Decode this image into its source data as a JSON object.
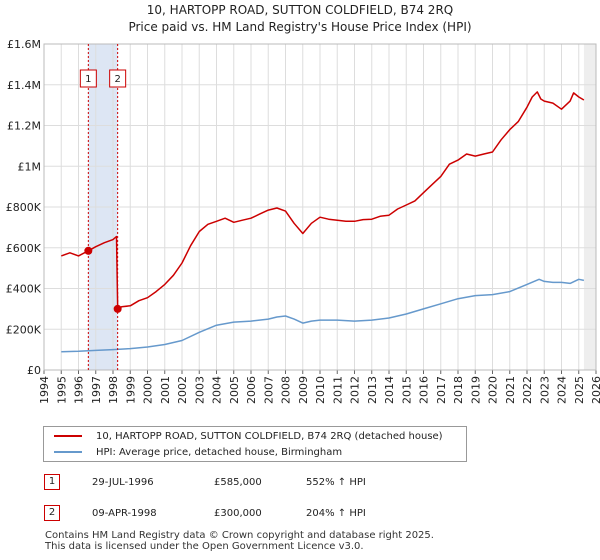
{
  "title": {
    "line1": "10, HARTOPP ROAD, SUTTON COLDFIELD, B74 2RQ",
    "line2": "Price paid vs. HM Land Registry's House Price Index (HPI)"
  },
  "colors": {
    "property": "#cc0000",
    "hpi": "#6699cc",
    "grid": "#dddddd",
    "marker_line": "#cc0000",
    "band": "#dde6f4"
  },
  "chart_data": {
    "type": "line",
    "xlim": [
      1994,
      2026
    ],
    "ylim": [
      0,
      1600000
    ],
    "yticks": [
      {
        "value": 0,
        "label": "£0"
      },
      {
        "value": 200000,
        "label": "£200K"
      },
      {
        "value": 400000,
        "label": "£400K"
      },
      {
        "value": 600000,
        "label": "£600K"
      },
      {
        "value": 800000,
        "label": "£800K"
      },
      {
        "value": 1000000,
        "label": "£1M"
      },
      {
        "value": 1200000,
        "label": "£1.2M"
      },
      {
        "value": 1400000,
        "label": "£1.4M"
      },
      {
        "value": 1600000,
        "label": "£1.6M"
      }
    ],
    "xticks": [
      "1994",
      "1995",
      "1996",
      "1997",
      "1998",
      "1999",
      "2000",
      "2001",
      "2002",
      "2003",
      "2004",
      "2005",
      "2006",
      "2007",
      "2008",
      "2009",
      "2010",
      "2011",
      "2012",
      "2013",
      "2014",
      "2015",
      "2016",
      "2017",
      "2018",
      "2019",
      "2020",
      "2021",
      "2022",
      "2023",
      "2024",
      "2025",
      "2026"
    ],
    "series": [
      {
        "name": "10, HARTOPP ROAD, SUTTON COLDFIELD, B74 2RQ (detached house)",
        "x": [
          1995.0,
          1995.5,
          1996.0,
          1996.57,
          1997.0,
          1997.5,
          1998.0,
          1998.2,
          1998.27,
          1998.5,
          1999.0,
          1999.5,
          2000.0,
          2000.5,
          2001.0,
          2001.5,
          2002.0,
          2002.5,
          2003.0,
          2003.5,
          2004.0,
          2004.5,
          2005.0,
          2005.5,
          2006.0,
          2006.5,
          2007.0,
          2007.5,
          2008.0,
          2008.5,
          2009.0,
          2009.5,
          2010.0,
          2010.5,
          2011.0,
          2011.5,
          2012.0,
          2012.5,
          2013.0,
          2013.5,
          2014.0,
          2014.5,
          2015.0,
          2015.5,
          2016.0,
          2016.5,
          2017.0,
          2017.5,
          2018.0,
          2018.5,
          2019.0,
          2019.5,
          2020.0,
          2020.5,
          2021.0,
          2021.5,
          2022.0,
          2022.3,
          2022.6,
          2022.8,
          2023.0,
          2023.5,
          2024.0,
          2024.5,
          2024.7,
          2025.0,
          2025.3
        ],
        "values": [
          560000,
          575000,
          560000,
          585000,
          605000,
          625000,
          640000,
          655000,
          300000,
          310000,
          315000,
          340000,
          355000,
          385000,
          420000,
          465000,
          525000,
          610000,
          680000,
          715000,
          730000,
          745000,
          725000,
          735000,
          745000,
          765000,
          785000,
          795000,
          780000,
          720000,
          670000,
          720000,
          750000,
          740000,
          735000,
          730000,
          730000,
          738000,
          740000,
          755000,
          760000,
          790000,
          810000,
          830000,
          870000,
          910000,
          950000,
          1010000,
          1030000,
          1060000,
          1050000,
          1060000,
          1070000,
          1130000,
          1180000,
          1220000,
          1290000,
          1340000,
          1365000,
          1330000,
          1320000,
          1310000,
          1280000,
          1320000,
          1360000,
          1340000,
          1325000
        ]
      },
      {
        "name": "HPI: Average price, detached house, Birmingham",
        "x": [
          1995.0,
          1996.0,
          1997.0,
          1998.0,
          1999.0,
          2000.0,
          2001.0,
          2002.0,
          2003.0,
          2004.0,
          2005.0,
          2006.0,
          2007.0,
          2007.5,
          2008.0,
          2008.5,
          2009.0,
          2009.5,
          2010.0,
          2011.0,
          2012.0,
          2013.0,
          2014.0,
          2015.0,
          2016.0,
          2017.0,
          2018.0,
          2019.0,
          2020.0,
          2021.0,
          2022.0,
          2022.7,
          2023.0,
          2023.5,
          2024.0,
          2024.5,
          2025.0,
          2025.3
        ],
        "values": [
          90000,
          92000,
          96000,
          100000,
          105000,
          113000,
          125000,
          145000,
          185000,
          220000,
          235000,
          240000,
          250000,
          260000,
          265000,
          250000,
          230000,
          240000,
          245000,
          245000,
          240000,
          245000,
          255000,
          275000,
          300000,
          325000,
          350000,
          365000,
          370000,
          385000,
          420000,
          445000,
          435000,
          430000,
          430000,
          425000,
          445000,
          440000
        ]
      }
    ],
    "sales": [
      {
        "id": "1",
        "date": "29-JUL-1996",
        "x": 1996.57,
        "price": 585000,
        "price_label": "£585,000",
        "hpi_label": "552% ↑ HPI"
      },
      {
        "id": "2",
        "date": "09-APR-1998",
        "x": 1998.27,
        "price": 300000,
        "price_label": "£300,000",
        "hpi_label": "204% ↑ HPI"
      }
    ],
    "shaded_band": [
      1996.57,
      1998.27
    ],
    "projection_start": 2025.3
  },
  "legend": {
    "property_label": "10, HARTOPP ROAD, SUTTON COLDFIELD, B74 2RQ (detached house)",
    "hpi_label": "HPI: Average price, detached house, Birmingham"
  },
  "footer": {
    "line1": "Contains HM Land Registry data © Crown copyright and database right 2025.",
    "line2": "This data is licensed under the Open Government Licence v3.0."
  }
}
